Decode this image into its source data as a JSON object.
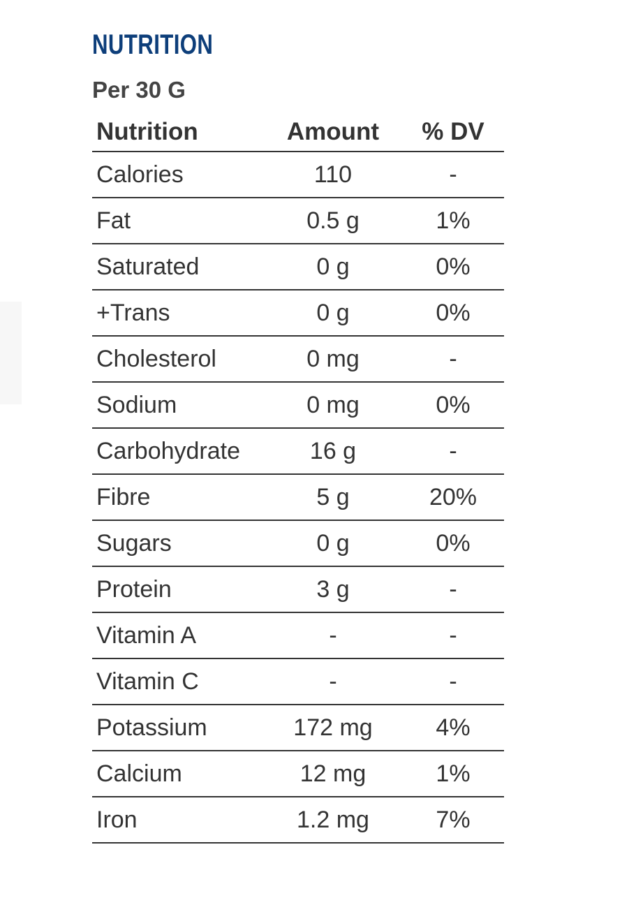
{
  "title": "NUTRITION",
  "serving": "Per 30 G",
  "headers": {
    "name": "Nutrition",
    "amount": "Amount",
    "dv": "% DV"
  },
  "rows": [
    {
      "name": "Calories",
      "amount": "110",
      "dv": "-"
    },
    {
      "name": "Fat",
      "amount": "0.5 g",
      "dv": "1%"
    },
    {
      "name": "Saturated",
      "amount": "0 g",
      "dv": "0%"
    },
    {
      "name": "+Trans",
      "amount": "0 g",
      "dv": "0%"
    },
    {
      "name": "Cholesterol",
      "amount": "0 mg",
      "dv": "-"
    },
    {
      "name": "Sodium",
      "amount": "0 mg",
      "dv": "0%"
    },
    {
      "name": "Carbohydrate",
      "amount": "16 g",
      "dv": "-"
    },
    {
      "name": "Fibre",
      "amount": "5 g",
      "dv": "20%"
    },
    {
      "name": "Sugars",
      "amount": "0 g",
      "dv": "0%"
    },
    {
      "name": "Protein",
      "amount": "3 g",
      "dv": "-"
    },
    {
      "name": "Vitamin A",
      "amount": "-",
      "dv": "-"
    },
    {
      "name": "Vitamin C",
      "amount": "-",
      "dv": "-"
    },
    {
      "name": "Potassium",
      "amount": "172 mg",
      "dv": "4%"
    },
    {
      "name": "Calcium",
      "amount": "12 mg",
      "dv": "1%"
    },
    {
      "name": "Iron",
      "amount": "1.2 mg",
      "dv": "7%"
    }
  ],
  "colors": {
    "title": "#0d3e7a",
    "text": "#333333"
  }
}
